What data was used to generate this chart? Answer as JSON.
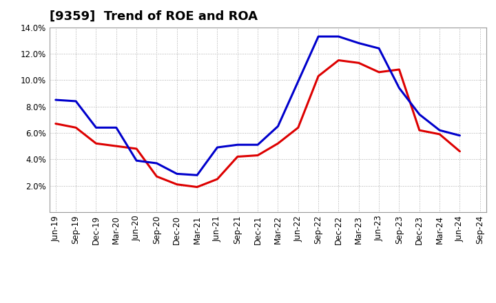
{
  "title": "[9359]  Trend of ROE and ROA",
  "labels": [
    "Jun-19",
    "Sep-19",
    "Dec-19",
    "Mar-20",
    "Jun-20",
    "Sep-20",
    "Dec-20",
    "Mar-21",
    "Jun-21",
    "Sep-21",
    "Dec-21",
    "Mar-22",
    "Jun-22",
    "Sep-22",
    "Dec-22",
    "Mar-23",
    "Jun-23",
    "Sep-23",
    "Dec-23",
    "Mar-24",
    "Jun-24",
    "Sep-24"
  ],
  "ROE": [
    6.7,
    6.4,
    5.2,
    5.0,
    4.8,
    2.7,
    2.1,
    1.9,
    2.5,
    4.2,
    4.3,
    5.2,
    6.4,
    10.3,
    11.5,
    11.3,
    10.6,
    10.8,
    6.2,
    5.9,
    4.6,
    null
  ],
  "ROA": [
    8.5,
    8.4,
    6.4,
    6.4,
    3.9,
    3.7,
    2.9,
    2.8,
    4.9,
    5.1,
    5.1,
    6.5,
    9.9,
    13.3,
    13.3,
    12.8,
    12.4,
    9.4,
    7.4,
    6.2,
    5.8,
    null
  ],
  "ylim": [
    0,
    14.0
  ],
  "yticks": [
    2.0,
    4.0,
    6.0,
    8.0,
    10.0,
    12.0,
    14.0
  ],
  "roe_color": "#dd0000",
  "roa_color": "#0000cc",
  "background_color": "#ffffff",
  "plot_bg_color": "#ffffff",
  "grid_color": "#aaaaaa",
  "title_fontsize": 13,
  "legend_fontsize": 10,
  "tick_fontsize": 8.5
}
